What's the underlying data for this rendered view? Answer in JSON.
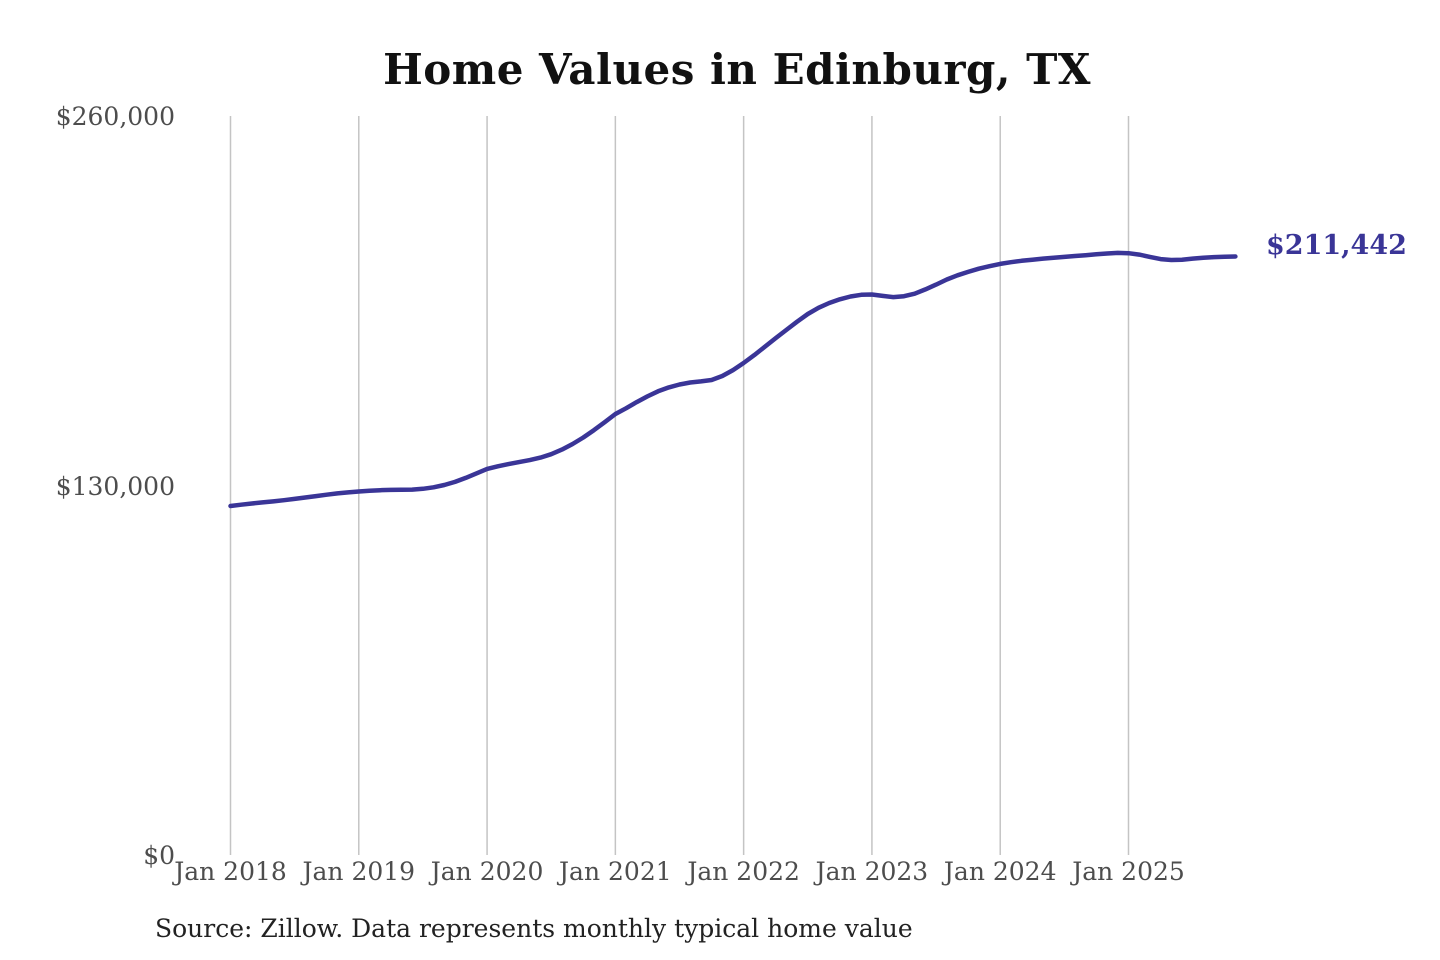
{
  "title": "Home Values in Edinburg, TX",
  "source_note": "Source: Zillow. Data represents monthly typical home value",
  "latest_value_label": "$211,442",
  "colors": {
    "line": "#3a3597",
    "annotation": "#3a3597",
    "grid": "#c4c4c4",
    "axis_text": "#4d4d4d",
    "title_text": "#111111",
    "source_text": "#222222",
    "background": "#ffffff"
  },
  "chart_data": {
    "type": "line",
    "title": "Home Values in Edinburg, TX",
    "series_name": "Monthly typical home value (Zillow)",
    "x_ticks": [
      "Jan 2018",
      "Jan 2019",
      "Jan 2020",
      "Jan 2021",
      "Jan 2022",
      "Jan 2023",
      "Jan 2024",
      "Jan 2025"
    ],
    "y_ticks": [
      "$0",
      "$130,000",
      "$260,000"
    ],
    "y_tick_values": [
      0,
      130000,
      260000
    ],
    "ylim": [
      0,
      260000
    ],
    "grid": "vertical-only",
    "annotation": "$211,442",
    "latest_value": 211442,
    "start_month": "2018-01",
    "end_month": "2025-11",
    "months": [
      "2018-01",
      "2018-02",
      "2018-03",
      "2018-04",
      "2018-05",
      "2018-06",
      "2018-07",
      "2018-08",
      "2018-09",
      "2018-10",
      "2018-11",
      "2018-12",
      "2019-01",
      "2019-02",
      "2019-03",
      "2019-04",
      "2019-05",
      "2019-06",
      "2019-07",
      "2019-08",
      "2019-09",
      "2019-10",
      "2019-11",
      "2019-12",
      "2020-01",
      "2020-02",
      "2020-03",
      "2020-04",
      "2020-05",
      "2020-06",
      "2020-07",
      "2020-08",
      "2020-09",
      "2020-10",
      "2020-11",
      "2020-12",
      "2021-01",
      "2021-02",
      "2021-03",
      "2021-04",
      "2021-05",
      "2021-06",
      "2021-07",
      "2021-08",
      "2021-09",
      "2021-10",
      "2021-11",
      "2021-12",
      "2022-01",
      "2022-02",
      "2022-03",
      "2022-04",
      "2022-05",
      "2022-06",
      "2022-07",
      "2022-08",
      "2022-09",
      "2022-10",
      "2022-11",
      "2022-12",
      "2023-01",
      "2023-02",
      "2023-03",
      "2023-04",
      "2023-05",
      "2023-06",
      "2023-07",
      "2023-08",
      "2023-09",
      "2023-10",
      "2023-11",
      "2023-12",
      "2024-01",
      "2024-02",
      "2024-03",
      "2024-04",
      "2024-05",
      "2024-06",
      "2024-07",
      "2024-08",
      "2024-09",
      "2024-10",
      "2024-11",
      "2024-12",
      "2025-01",
      "2025-02",
      "2025-03",
      "2025-04",
      "2025-05",
      "2025-06",
      "2025-07",
      "2025-08",
      "2025-09",
      "2025-10",
      "2025-11"
    ],
    "values": [
      123292,
      123750,
      124180,
      124560,
      124930,
      125320,
      125780,
      126280,
      126790,
      127290,
      127740,
      128110,
      128420,
      128690,
      128880,
      128990,
      129020,
      129080,
      129350,
      129900,
      130700,
      131800,
      133200,
      134800,
      136400,
      137300,
      138100,
      138800,
      139500,
      140400,
      141600,
      143200,
      145200,
      147500,
      150100,
      152900,
      155800,
      157800,
      160000,
      162000,
      163800,
      165200,
      166200,
      166900,
      167300,
      167800,
      169200,
      171300,
      173800,
      176600,
      179600,
      182600,
      185500,
      188400,
      191100,
      193300,
      195000,
      196300,
      197300,
      197900,
      198000,
      197500,
      197100,
      197400,
      198300,
      199800,
      201500,
      203300,
      204800,
      206000,
      207100,
      208000,
      208800,
      209400,
      209900,
      210300,
      210700,
      211000,
      211300,
      211600,
      211900,
      212200,
      212500,
      212700,
      212600,
      212100,
      211300,
      210500,
      210200,
      210300,
      210700,
      211000,
      211200,
      211350,
      211442
    ]
  }
}
